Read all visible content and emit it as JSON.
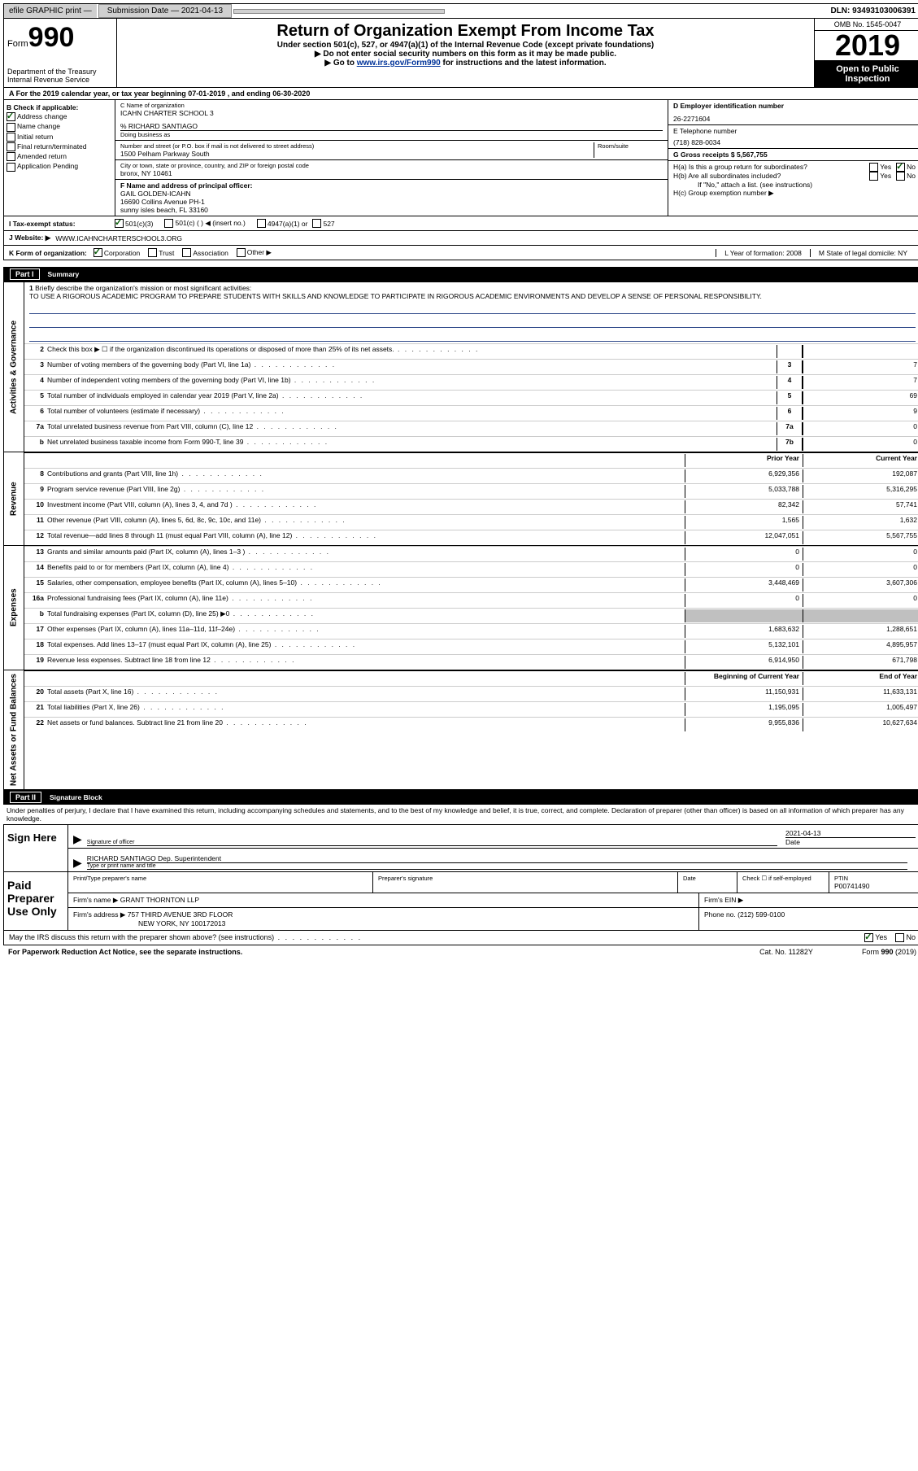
{
  "topbar": {
    "efile_label": "efile GRAPHIC print —",
    "submission_btn": "Submission Date — 2021-04-13",
    "dln": "DLN: 93493103006391"
  },
  "header": {
    "form_prefix": "Form",
    "form_number": "990",
    "title": "Return of Organization Exempt From Income Tax",
    "subtitle": "Under section 501(c), 527, or 4947(a)(1) of the Internal Revenue Code (except private foundations)",
    "instr1": "▶ Do not enter social security numbers on this form as it may be made public.",
    "instr2_pre": "▶ Go to ",
    "instr2_link": "www.irs.gov/Form990",
    "instr2_post": " for instructions and the latest information.",
    "dept": "Department of the Treasury\nInternal Revenue Service",
    "omb": "OMB No. 1545-0047",
    "year": "2019",
    "open_public": "Open to Public Inspection"
  },
  "section_a": "A For the 2019 calendar year, or tax year beginning 07-01-2019   , and ending 06-30-2020",
  "col_b": {
    "title": "B Check if applicable:",
    "address_change": "Address change",
    "name_change": "Name change",
    "initial_return": "Initial return",
    "final_return": "Final return/terminated",
    "amended_return": "Amended return",
    "app_pending": "Application Pending"
  },
  "col_c": {
    "name_label": "C Name of organization",
    "name": "ICAHN CHARTER SCHOOL 3",
    "care_of": "% RICHARD SANTIAGO",
    "dba_label": "Doing business as",
    "addr_label": "Number and street (or P.O. box if mail is not delivered to street address)",
    "room_label": "Room/suite",
    "address": "1500 Pelham Parkway South",
    "city_label": "City or town, state or province, country, and ZIP or foreign postal code",
    "city": "bronx, NY  10461",
    "f_label": "F Name and address of principal officer:",
    "officer_name": "GAIL GOLDEN-ICAHN",
    "officer_addr1": "16690 Collins Avenue PH-1",
    "officer_addr2": "sunny isles beach, FL  33160"
  },
  "col_d": {
    "ein_label": "D Employer identification number",
    "ein": "26-2271604",
    "phone_label": "E Telephone number",
    "phone": "(718) 828-0034",
    "gross_label": "G Gross receipts $ 5,567,755"
  },
  "col_h": {
    "ha": "H(a)  Is this a group return for subordinates?",
    "hb": "H(b)  Are all subordinates included?",
    "hb_note": "If \"No,\" attach a list. (see instructions)",
    "hc": "H(c)  Group exemption number ▶",
    "yes": "Yes",
    "no": "No"
  },
  "row_i": {
    "label": "I   Tax-exempt status:",
    "opt1": "501(c)(3)",
    "opt2": "501(c) (   ) ◀ (insert no.)",
    "opt3": "4947(a)(1) or",
    "opt4": "527"
  },
  "row_j": {
    "label": "J   Website: ▶",
    "value": "WWW.ICAHNCHARTERSCHOOL3.ORG"
  },
  "row_k": {
    "label": "K Form of organization:",
    "corp": "Corporation",
    "trust": "Trust",
    "assoc": "Association",
    "other": "Other ▶",
    "l_label": "L Year of formation: 2008",
    "m_label": "M State of legal domicile: NY"
  },
  "part1": {
    "partnum": "Part I",
    "title": "Summary"
  },
  "side_labels": {
    "activities": "Activities & Governance",
    "revenue": "Revenue",
    "expenses": "Expenses",
    "netassets": "Net Assets or Fund Balances"
  },
  "mission": {
    "num": "1",
    "label": "Briefly describe the organization's mission or most significant activities:",
    "text": "TO USE A RIGOROUS ACADEMIC PROGRAM TO PREPARE STUDENTS WITH SKILLS AND KNOWLEDGE TO PARTICIPATE IN RIGOROUS ACADEMIC ENVIRONMENTS AND DEVELOP A SENSE OF PERSONAL RESPONSIBILITY."
  },
  "lines_ag": [
    {
      "num": "2",
      "desc": "Check this box ▶ ☐  if the organization discontinued its operations or disposed of more than 25% of its net assets.",
      "box": "",
      "val": ""
    },
    {
      "num": "3",
      "desc": "Number of voting members of the governing body (Part VI, line 1a)",
      "box": "3",
      "val": "7"
    },
    {
      "num": "4",
      "desc": "Number of independent voting members of the governing body (Part VI, line 1b)",
      "box": "4",
      "val": "7"
    },
    {
      "num": "5",
      "desc": "Total number of individuals employed in calendar year 2019 (Part V, line 2a)",
      "box": "5",
      "val": "69"
    },
    {
      "num": "6",
      "desc": "Total number of volunteers (estimate if necessary)",
      "box": "6",
      "val": "9"
    },
    {
      "num": "7a",
      "desc": "Total unrelated business revenue from Part VIII, column (C), line 12",
      "box": "7a",
      "val": "0"
    },
    {
      "num": "b",
      "desc": "Net unrelated business taxable income from Form 990-T, line 39",
      "box": "7b",
      "val": "0"
    }
  ],
  "colheaders": {
    "prior": "Prior Year",
    "current": "Current Year",
    "begin": "Beginning of Current Year",
    "end": "End of Year"
  },
  "lines_rev": [
    {
      "num": "8",
      "desc": "Contributions and grants (Part VIII, line 1h)",
      "v1": "6,929,356",
      "v2": "192,087"
    },
    {
      "num": "9",
      "desc": "Program service revenue (Part VIII, line 2g)",
      "v1": "5,033,788",
      "v2": "5,316,295"
    },
    {
      "num": "10",
      "desc": "Investment income (Part VIII, column (A), lines 3, 4, and 7d )",
      "v1": "82,342",
      "v2": "57,741"
    },
    {
      "num": "11",
      "desc": "Other revenue (Part VIII, column (A), lines 5, 6d, 8c, 9c, 10c, and 11e)",
      "v1": "1,565",
      "v2": "1,632"
    },
    {
      "num": "12",
      "desc": "Total revenue—add lines 8 through 11 (must equal Part VIII, column (A), line 12)",
      "v1": "12,047,051",
      "v2": "5,567,755"
    }
  ],
  "lines_exp": [
    {
      "num": "13",
      "desc": "Grants and similar amounts paid (Part IX, column (A), lines 1–3 )",
      "v1": "0",
      "v2": "0"
    },
    {
      "num": "14",
      "desc": "Benefits paid to or for members (Part IX, column (A), line 4)",
      "v1": "0",
      "v2": "0"
    },
    {
      "num": "15",
      "desc": "Salaries, other compensation, employee benefits (Part IX, column (A), lines 5–10)",
      "v1": "3,448,469",
      "v2": "3,607,306"
    },
    {
      "num": "16a",
      "desc": "Professional fundraising fees (Part IX, column (A), line 11e)",
      "v1": "0",
      "v2": "0"
    },
    {
      "num": "b",
      "desc": "Total fundraising expenses (Part IX, column (D), line 25) ▶0",
      "v1": "",
      "v2": "",
      "shaded": true
    },
    {
      "num": "17",
      "desc": "Other expenses (Part IX, column (A), lines 11a–11d, 11f–24e)",
      "v1": "1,683,632",
      "v2": "1,288,651"
    },
    {
      "num": "18",
      "desc": "Total expenses. Add lines 13–17 (must equal Part IX, column (A), line 25)",
      "v1": "5,132,101",
      "v2": "4,895,957"
    },
    {
      "num": "19",
      "desc": "Revenue less expenses. Subtract line 18 from line 12",
      "v1": "6,914,950",
      "v2": "671,798"
    }
  ],
  "lines_net": [
    {
      "num": "20",
      "desc": "Total assets (Part X, line 16)",
      "v1": "11,150,931",
      "v2": "11,633,131"
    },
    {
      "num": "21",
      "desc": "Total liabilities (Part X, line 26)",
      "v1": "1,195,095",
      "v2": "1,005,497"
    },
    {
      "num": "22",
      "desc": "Net assets or fund balances. Subtract line 21 from line 20",
      "v1": "9,955,836",
      "v2": "10,627,634"
    }
  ],
  "part2": {
    "partnum": "Part II",
    "title": "Signature Block"
  },
  "sig_intro": "Under penalties of perjury, I declare that I have examined this return, including accompanying schedules and statements, and to the best of my knowledge and belief, it is true, correct, and complete. Declaration of preparer (other than officer) is based on all information of which preparer has any knowledge.",
  "sign_here": {
    "label": "Sign Here",
    "sig_label": "Signature of officer",
    "date_label": "Date",
    "date": "2021-04-13",
    "name": "RICHARD SANTIAGO  Dep. Superintendent",
    "name_label": "Type or print name and title"
  },
  "paid_prep": {
    "label": "Paid Preparer Use Only",
    "col1": "Print/Type preparer's name",
    "col2": "Preparer's signature",
    "col3": "Date",
    "col4_a": "Check ☐ if self-employed",
    "col4_b": "PTIN",
    "ptin": "P00741490",
    "firm_name_label": "Firm's name   ▶",
    "firm_name": "GRANT THORNTON LLP",
    "firm_ein_label": "Firm's EIN ▶",
    "firm_addr_label": "Firm's address ▶",
    "firm_addr1": "757 THIRD AVENUE 3RD FLOOR",
    "firm_addr2": "NEW YORK, NY  100172013",
    "phone_label": "Phone no. (212) 599-0100"
  },
  "irs_discuss": {
    "text": "May the IRS discuss this return with the preparer shown above? (see instructions)",
    "yes": "Yes",
    "no": "No"
  },
  "footer": {
    "left": "For Paperwork Reduction Act Notice, see the separate instructions.",
    "center": "Cat. No. 11282Y",
    "right": "Form 990 (2019)"
  }
}
